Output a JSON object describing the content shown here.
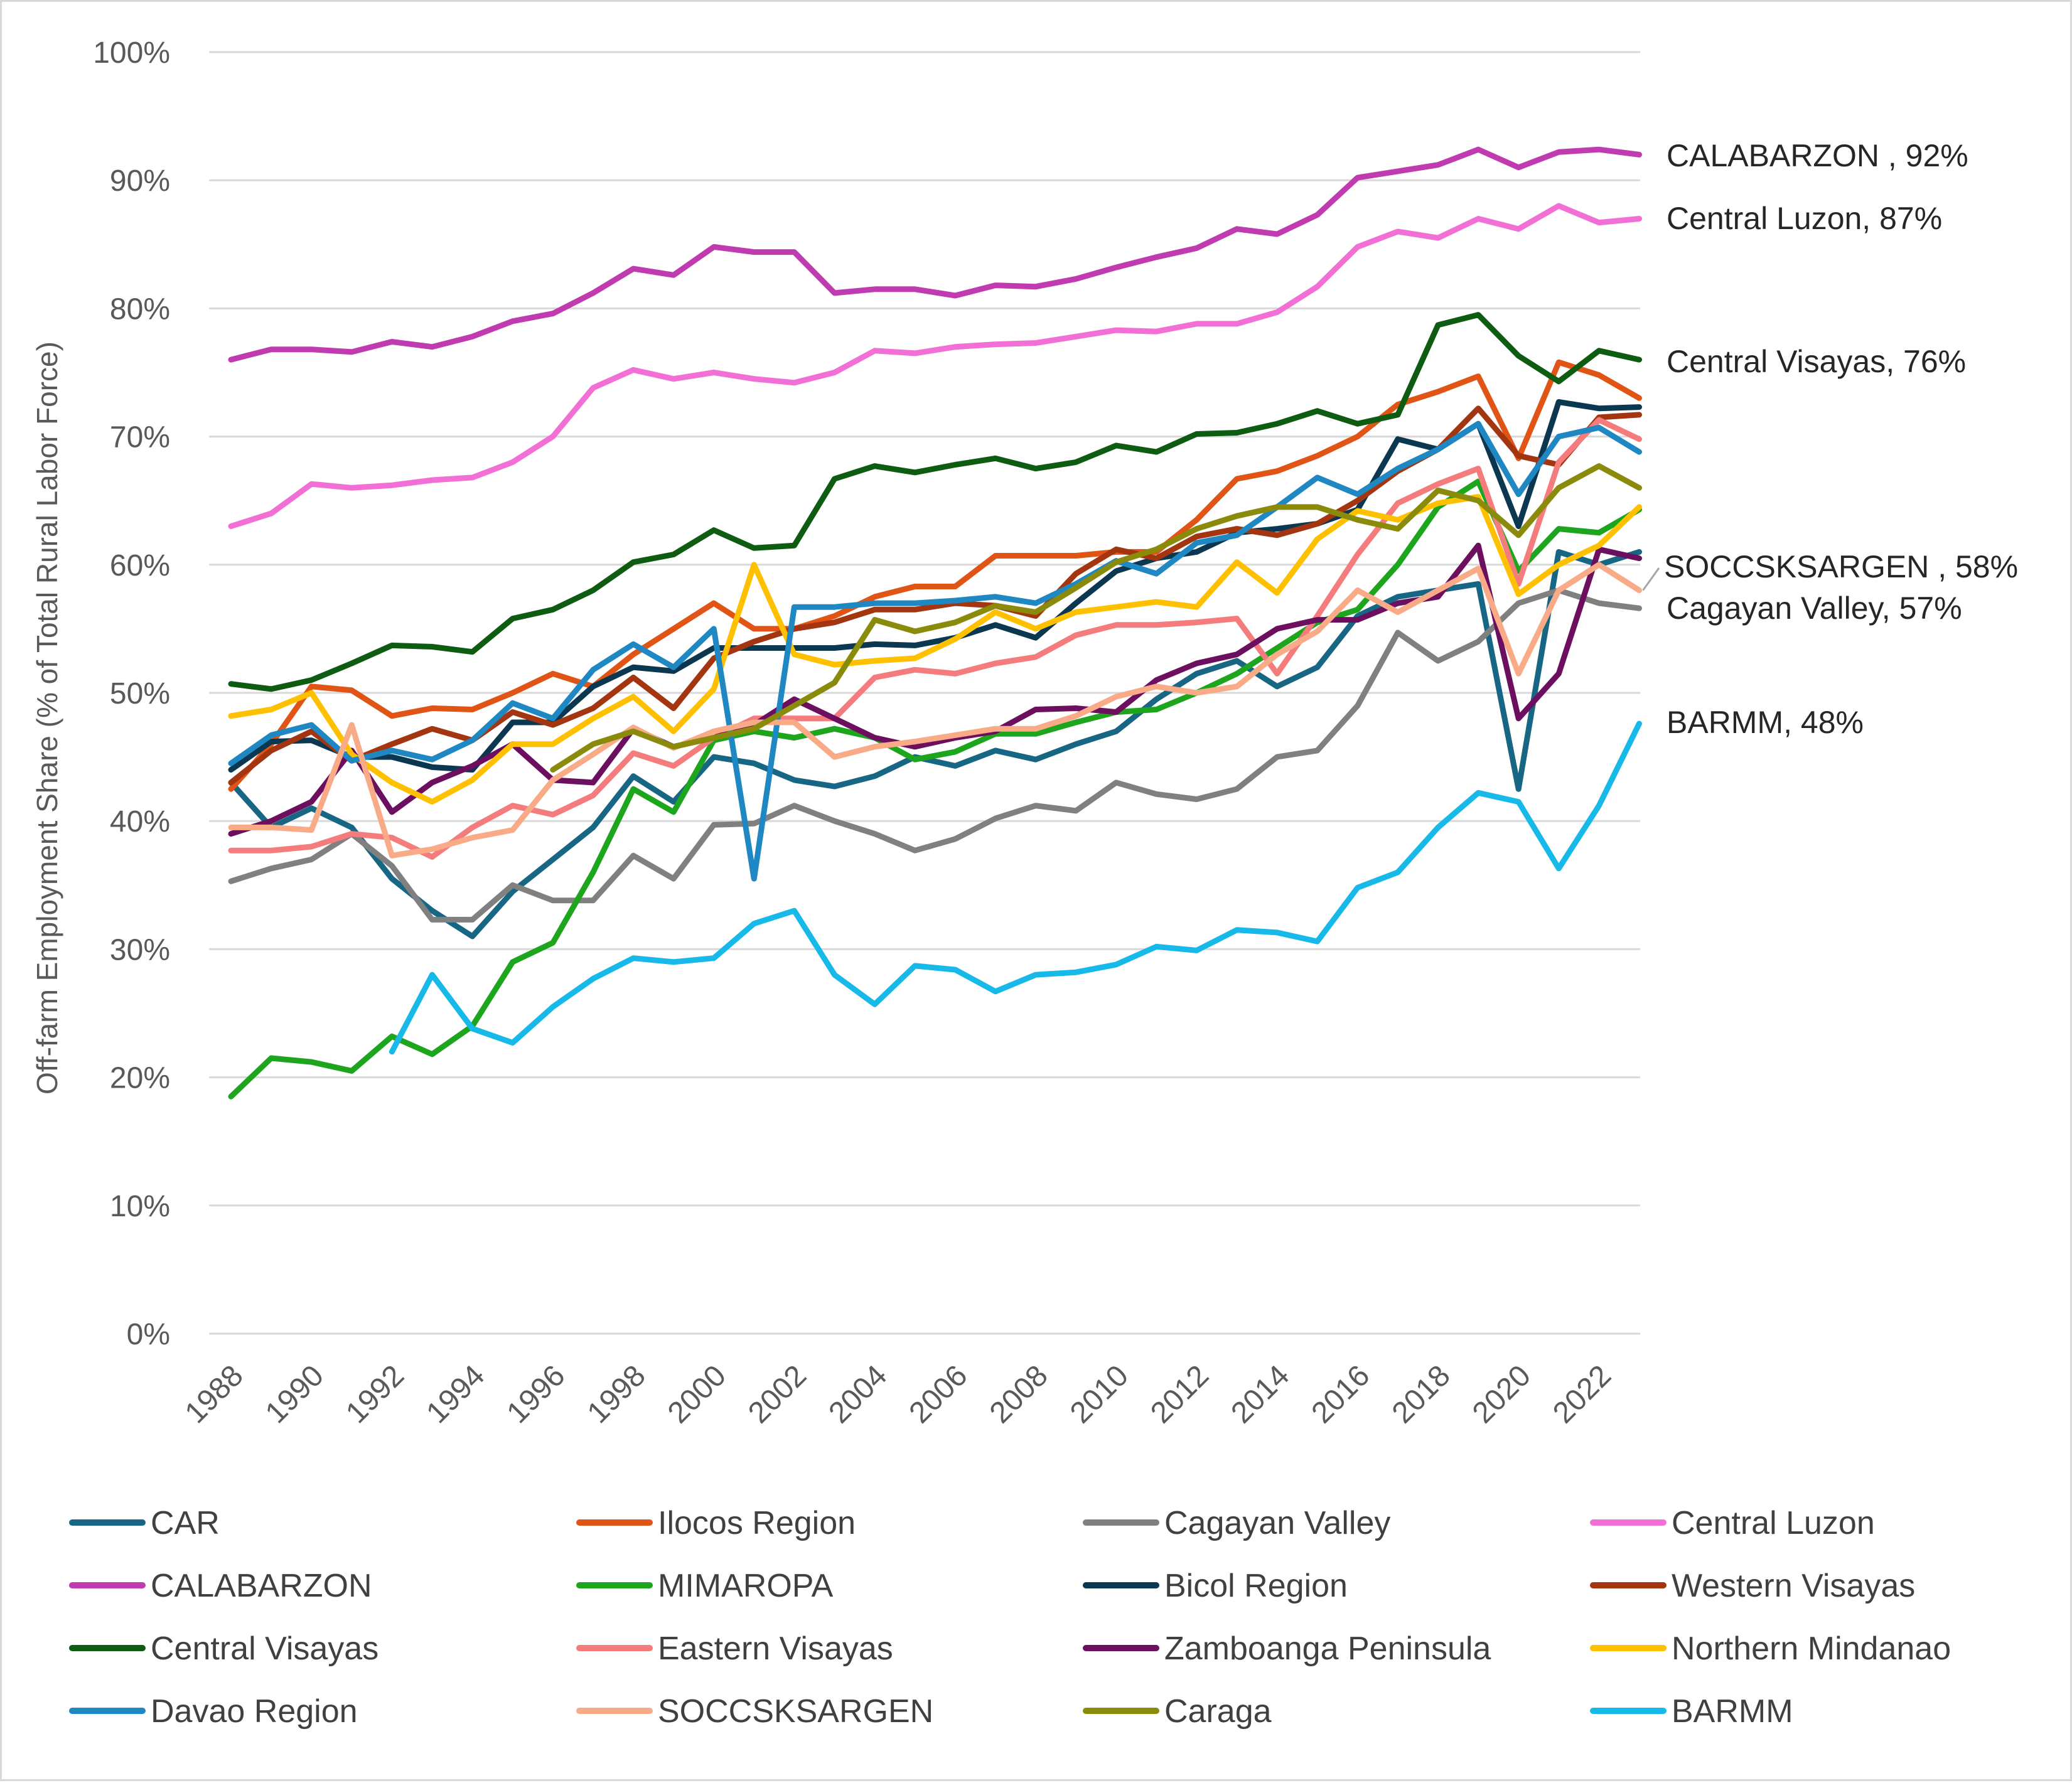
{
  "chart_data": {
    "type": "line",
    "title": "",
    "xlabel": "",
    "ylabel": "Off-farm Employment Share (% of Total Rural Labor Force)",
    "ylim": [
      0,
      100
    ],
    "xlim": [
      1988,
      2023
    ],
    "y_ticks": [
      "0%",
      "10%",
      "20%",
      "30%",
      "40%",
      "50%",
      "60%",
      "70%",
      "80%",
      "90%",
      "100%"
    ],
    "y_tick_values": [
      0,
      10,
      20,
      30,
      40,
      50,
      60,
      70,
      80,
      90,
      100
    ],
    "x_ticks": [
      "1988",
      "1990",
      "1992",
      "1994",
      "1996",
      "1998",
      "2000",
      "2002",
      "2004",
      "2006",
      "2008",
      "2010",
      "2012",
      "2014",
      "2016",
      "2018",
      "2020",
      "2022"
    ],
    "x_tick_values": [
      1988,
      1990,
      1992,
      1994,
      1996,
      1998,
      2000,
      2002,
      2004,
      2006,
      2008,
      2010,
      2012,
      2014,
      2016,
      2018,
      2020,
      2022
    ],
    "grid": true,
    "legend_position": "bottom",
    "series": [
      {
        "name": "CAR",
        "color": "#176784",
        "start": 1988,
        "values": [
          43,
          39.5,
          41,
          39.5,
          35.5,
          33,
          31,
          34.5,
          37,
          39.5,
          43.5,
          41.5,
          45,
          44.5,
          43.2,
          42.7,
          43.5,
          45,
          44.3,
          45.5,
          44.8,
          46,
          47,
          49.5,
          51.5,
          52.5,
          50.5,
          52,
          56,
          57.5,
          58,
          58.5,
          42.5,
          61,
          60,
          61
        ]
      },
      {
        "name": "Ilocos Region",
        "color": "#e05515",
        "start": 1988,
        "values": [
          42.5,
          46,
          50.5,
          50.2,
          48.2,
          48.8,
          48.7,
          50,
          51.5,
          50.5,
          53,
          55,
          57,
          55,
          55,
          56,
          57.5,
          58.3,
          58.3,
          60.7,
          60.7,
          60.7,
          61,
          61,
          63.5,
          66.7,
          67.3,
          68.5,
          70,
          72.5,
          73.5,
          74.7,
          68.3,
          75.8,
          74.8,
          73
        ]
      },
      {
        "name": "Cagayan Valley",
        "color": "#808080",
        "start": 1988,
        "values": [
          35.3,
          36.3,
          37,
          39,
          36.5,
          32.3,
          32.3,
          35,
          33.8,
          33.8,
          37.3,
          35.5,
          39.7,
          39.8,
          41.2,
          40,
          39,
          37.7,
          38.6,
          40.2,
          41.2,
          40.8,
          43,
          42.1,
          41.7,
          42.5,
          45,
          45.5,
          49,
          54.7,
          52.5,
          54,
          57,
          58,
          57,
          56.6
        ]
      },
      {
        "name": "Central Luzon",
        "color": "#f26fd6",
        "start": 1988,
        "values": [
          63,
          64,
          66.3,
          66,
          66.2,
          66.6,
          66.8,
          68,
          70,
          73.8,
          75.2,
          74.5,
          75,
          74.5,
          74.2,
          75,
          76.7,
          76.5,
          77,
          77.2,
          77.3,
          77.8,
          78.3,
          78.2,
          78.8,
          78.8,
          79.7,
          81.7,
          84.8,
          86,
          85.5,
          87,
          86.2,
          88,
          86.7,
          87
        ]
      },
      {
        "name": "CALABARZON",
        "color": "#c13bb0",
        "start": 1988,
        "values": [
          76,
          76.8,
          76.8,
          76.6,
          77.4,
          77,
          77.8,
          79,
          79.6,
          81.2,
          83.1,
          82.6,
          84.8,
          84.4,
          84.4,
          81.2,
          81.5,
          81.5,
          81,
          81.8,
          81.7,
          82.3,
          83.2,
          84,
          84.7,
          86.2,
          85.8,
          87.3,
          90.2,
          90.7,
          91.2,
          92.4,
          91,
          92.2,
          92.4,
          92
        ]
      },
      {
        "name": "MIMAROPA",
        "color": "#1ea51e",
        "start": 1988,
        "values": [
          18.5,
          21.5,
          21.2,
          20.5,
          23.2,
          21.8,
          24,
          29,
          30.5,
          36,
          42.5,
          40.7,
          46.3,
          47,
          46.5,
          47.2,
          46.5,
          44.8,
          45.4,
          46.8,
          46.8,
          47.7,
          48.5,
          48.7,
          50,
          51.5,
          53.5,
          55.5,
          56.5,
          60,
          64.5,
          66.5,
          59.5,
          62.8,
          62.5,
          64.3
        ]
      },
      {
        "name": "Bicol Region",
        "color": "#0b3750",
        "start": 1988,
        "values": [
          44,
          46.2,
          46.3,
          45,
          45,
          44.2,
          44,
          47.7,
          47.7,
          50.5,
          52,
          51.7,
          53.5,
          53.5,
          53.5,
          53.5,
          53.8,
          53.7,
          54.3,
          55.3,
          54.3,
          57,
          59.5,
          60.5,
          61,
          62.5,
          62.8,
          63.2,
          64.3,
          69.8,
          69,
          71,
          63,
          72.7,
          72.2,
          72.3
        ]
      },
      {
        "name": "Western Visayas",
        "color": "#a33510",
        "start": 1988,
        "values": [
          43,
          45.5,
          47,
          44.7,
          46,
          47.2,
          46.3,
          48.5,
          47.5,
          48.8,
          51.2,
          48.8,
          52.7,
          54,
          55,
          55.5,
          56.5,
          56.5,
          57,
          56.8,
          56,
          59.3,
          61.2,
          60.5,
          62.2,
          62.8,
          62.3,
          63.2,
          65,
          67.3,
          69,
          72.2,
          68.5,
          67.8,
          71.5,
          71.7
        ]
      },
      {
        "name": "Central Visayas",
        "color": "#0e5c12",
        "start": 1988,
        "values": [
          50.7,
          50.3,
          51,
          52.3,
          53.7,
          53.6,
          53.2,
          55.8,
          56.5,
          58,
          60.2,
          60.8,
          62.7,
          61.3,
          61.5,
          66.7,
          67.7,
          67.2,
          67.8,
          68.3,
          67.5,
          68,
          69.3,
          68.8,
          70.2,
          70.3,
          71,
          72,
          71,
          71.7,
          78.7,
          79.5,
          76.3,
          74.3,
          76.7,
          76
        ]
      },
      {
        "name": "Eastern Visayas",
        "color": "#f47c7c",
        "start": 1988,
        "values": [
          37.7,
          37.7,
          38,
          39,
          38.7,
          37.2,
          39.5,
          41.2,
          40.5,
          42,
          45.3,
          44.3,
          46.5,
          48,
          48,
          48,
          51.2,
          51.8,
          51.5,
          52.3,
          52.8,
          54.5,
          55.3,
          55.3,
          55.5,
          55.8,
          51.5,
          56,
          60.8,
          64.8,
          66.3,
          67.5,
          58.5,
          68,
          71.3,
          69.8
        ]
      },
      {
        "name": "Zamboanga Peninsula",
        "color": "#6c0f5f",
        "start": 1988,
        "values": [
          39,
          40,
          41.5,
          45.5,
          40.7,
          43,
          44.3,
          46,
          43.2,
          43,
          47.2,
          45.8,
          46.5,
          47.5,
          49.5,
          48,
          46.5,
          45.8,
          46.5,
          47,
          48.7,
          48.8,
          48.5,
          51,
          52.3,
          53,
          55,
          55.7,
          55.7,
          57,
          57.5,
          61.5,
          48,
          51.5,
          61.2,
          60.5
        ]
      },
      {
        "name": "Northern Mindanao",
        "color": "#ffc000",
        "start": 1988,
        "values": [
          48.2,
          48.7,
          50,
          45.2,
          43,
          41.5,
          43.2,
          46,
          46,
          48,
          49.7,
          47,
          50.3,
          60,
          53,
          52.2,
          52.5,
          52.7,
          54.2,
          56.3,
          55,
          56.3,
          56.7,
          57.1,
          56.7,
          60.2,
          57.8,
          62,
          64.2,
          63.5,
          64.8,
          65.3,
          57.7,
          60,
          61.5,
          64.5
        ]
      },
      {
        "name": "Davao Region",
        "color": "#1f87c2",
        "start": 1988,
        "values": [
          44.5,
          46.7,
          47.5,
          44.7,
          45.5,
          44.8,
          46.3,
          49.2,
          48,
          51.8,
          53.8,
          52,
          55,
          35.5,
          56.7,
          56.7,
          57,
          57,
          57.2,
          57.5,
          57,
          58.5,
          60.3,
          59.3,
          61.7,
          62.3,
          64.5,
          66.8,
          65.5,
          67.5,
          69,
          71,
          65.5,
          70,
          70.7,
          68.8
        ]
      },
      {
        "name": "SOCCSKSARGEN",
        "color": "#f9ab87",
        "start": 1988,
        "values": [
          39.5,
          39.5,
          39.3,
          47.5,
          37.3,
          37.8,
          38.7,
          39.3,
          43.2,
          45.2,
          47.3,
          45.7,
          47,
          47.7,
          47.7,
          45,
          45.8,
          46.2,
          46.7,
          47.2,
          47.2,
          48.2,
          49.7,
          50.5,
          50,
          50.5,
          53,
          54.8,
          58,
          56.3,
          58,
          59.7,
          51.5,
          58,
          60,
          58
        ]
      },
      {
        "name": "Caraga",
        "color": "#8a8b0a",
        "start": null,
        "values": [
          null,
          null,
          null,
          null,
          null,
          null,
          null,
          null,
          44,
          46,
          47,
          45.8,
          46.5,
          47.2,
          49,
          50.8,
          55.7,
          54.8,
          55.5,
          56.8,
          56.3,
          58.2,
          60.2,
          61.2,
          62.8,
          63.8,
          64.5,
          64.5,
          63.5,
          62.8,
          65.8,
          65,
          62.3,
          66,
          67.7,
          66
        ]
      },
      {
        "name": "BARMM",
        "color": "#16b9e8",
        "start": null,
        "values": [
          null,
          null,
          null,
          null,
          22,
          28,
          23.8,
          22.7,
          25.5,
          27.7,
          29.3,
          29,
          29.3,
          32,
          33,
          28,
          25.7,
          28.7,
          28.4,
          26.7,
          28,
          28.2,
          28.8,
          30.2,
          29.9,
          31.5,
          31.3,
          30.6,
          34.8,
          36,
          39.5,
          42.2,
          41.5,
          36.3,
          41.2,
          47.6
        ]
      }
    ],
    "annotations": [
      {
        "series": "CALABARZON",
        "text": "CALABARZON , 92%"
      },
      {
        "series": "Central Luzon",
        "text": "Central Luzon, 87%"
      },
      {
        "series": "Central Visayas",
        "text": "Central Visayas, 76%"
      },
      {
        "series": "SOCCSKSARGEN",
        "text": "SOCCSKSARGEN , 58%"
      },
      {
        "series": "Cagayan Valley",
        "text": "Cagayan Valley, 57%"
      },
      {
        "series": "BARMM",
        "text": "BARMM, 48%"
      }
    ]
  }
}
